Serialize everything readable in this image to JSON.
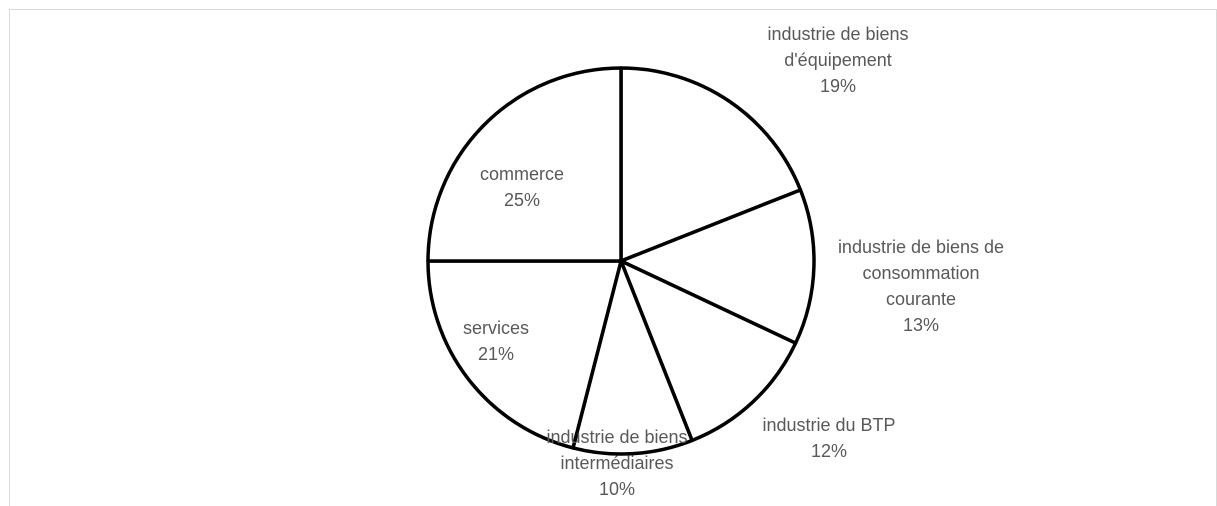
{
  "chart_data": {
    "type": "pie",
    "start": "12 o'clock",
    "direction": "clockwise",
    "slice_fill": "#ffffff",
    "slice_stroke": "#000000",
    "label_color": "#595959",
    "slices": [
      {
        "label_lines": [
          "industrie de biens",
          "d'équipement"
        ],
        "pct_label": "19%",
        "value": 19
      },
      {
        "label_lines": [
          "industrie de biens de",
          "consommation",
          "courante"
        ],
        "pct_label": "13%",
        "value": 13
      },
      {
        "label_lines": [
          "industrie du BTP"
        ],
        "pct_label": "12%",
        "value": 12
      },
      {
        "label_lines": [
          "industrie de biens",
          "intermédiaires"
        ],
        "pct_label": "10%",
        "value": 10
      },
      {
        "label_lines": [
          "services"
        ],
        "pct_label": "21%",
        "value": 21
      },
      {
        "label_lines": [
          "commerce"
        ],
        "pct_label": "25%",
        "value": 25
      }
    ]
  }
}
